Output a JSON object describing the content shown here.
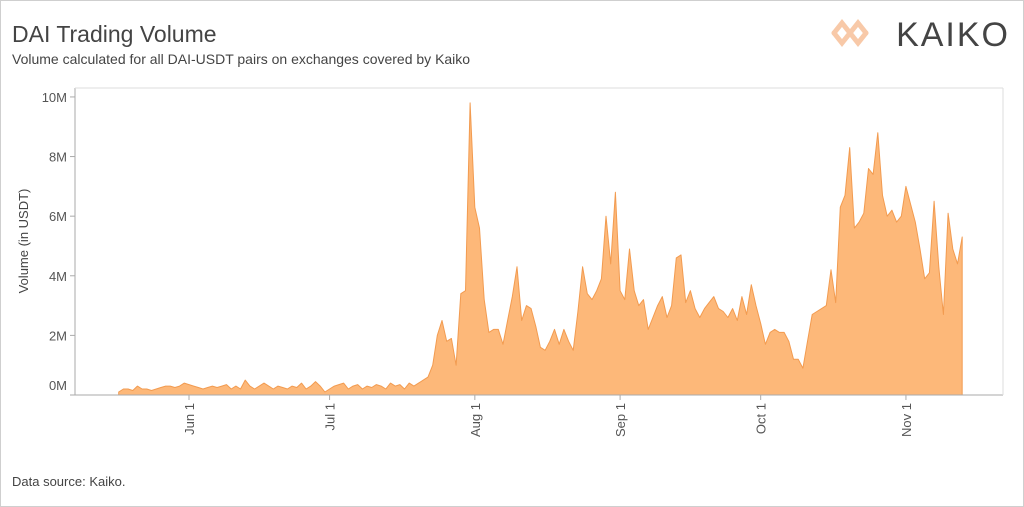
{
  "chart_data": {
    "type": "area",
    "title": "DAI Trading Volume",
    "subtitle": "Volume calculated for all DAI-USDT pairs on exchanges covered by Kaiko",
    "logo": "KAIKO",
    "ylabel": "Volume (in USDT)",
    "source": "Data source: Kaiko.",
    "color": "#fdb879",
    "line_color": "#f29b50",
    "x": [
      "May 17",
      "May 18",
      "May 19",
      "May 20",
      "May 21",
      "May 22",
      "May 23",
      "May 24",
      "May 25",
      "May 26",
      "May 27",
      "May 28",
      "May 29",
      "May 30",
      "May 31",
      "Jun 1",
      "Jun 2",
      "Jun 3",
      "Jun 4",
      "Jun 5",
      "Jun 6",
      "Jun 7",
      "Jun 8",
      "Jun 9",
      "Jun 10",
      "Jun 11",
      "Jun 12",
      "Jun 13",
      "Jun 14",
      "Jun 15",
      "Jun 16",
      "Jun 17",
      "Jun 18",
      "Jun 19",
      "Jun 20",
      "Jun 21",
      "Jun 22",
      "Jun 23",
      "Jun 24",
      "Jun 25",
      "Jun 26",
      "Jun 27",
      "Jun 28",
      "Jun 29",
      "Jun 30",
      "Jul 1",
      "Jul 2",
      "Jul 3",
      "Jul 4",
      "Jul 5",
      "Jul 6",
      "Jul 7",
      "Jul 8",
      "Jul 9",
      "Jul 10",
      "Jul 11",
      "Jul 12",
      "Jul 13",
      "Jul 14",
      "Jul 15",
      "Jul 16",
      "Jul 17",
      "Jul 18",
      "Jul 19",
      "Jul 20",
      "Jul 21",
      "Jul 22",
      "Jul 23",
      "Jul 24",
      "Jul 25",
      "Jul 26",
      "Jul 27",
      "Jul 28",
      "Jul 29",
      "Jul 30",
      "Jul 31",
      "Aug 1",
      "Aug 2",
      "Aug 3",
      "Aug 4",
      "Aug 5",
      "Aug 6",
      "Aug 7",
      "Aug 8",
      "Aug 9",
      "Aug 10",
      "Aug 11",
      "Aug 12",
      "Aug 13",
      "Aug 14",
      "Aug 15",
      "Aug 16",
      "Aug 17",
      "Aug 18",
      "Aug 19",
      "Aug 20",
      "Aug 21",
      "Aug 22",
      "Aug 23",
      "Aug 24",
      "Aug 25",
      "Aug 26",
      "Aug 27",
      "Aug 28",
      "Aug 29",
      "Aug 30",
      "Aug 31",
      "Sep 1",
      "Sep 2",
      "Sep 3",
      "Sep 4",
      "Sep 5",
      "Sep 6",
      "Sep 7",
      "Sep 8",
      "Sep 9",
      "Sep 10",
      "Sep 11",
      "Sep 12",
      "Sep 13",
      "Sep 14",
      "Sep 15",
      "Sep 16",
      "Sep 17",
      "Sep 18",
      "Sep 19",
      "Sep 20",
      "Sep 21",
      "Sep 22",
      "Sep 23",
      "Sep 24",
      "Sep 25",
      "Sep 26",
      "Sep 27",
      "Sep 28",
      "Sep 29",
      "Sep 30",
      "Oct 1",
      "Oct 2",
      "Oct 3",
      "Oct 4",
      "Oct 5",
      "Oct 6",
      "Oct 7",
      "Oct 8",
      "Oct 9",
      "Oct 10",
      "Oct 11",
      "Oct 12",
      "Oct 13",
      "Oct 14",
      "Oct 15",
      "Oct 16",
      "Oct 17",
      "Oct 18",
      "Oct 19",
      "Oct 20",
      "Oct 21",
      "Oct 22",
      "Oct 23",
      "Oct 24",
      "Oct 25",
      "Oct 26",
      "Oct 27",
      "Oct 28",
      "Oct 29",
      "Oct 30",
      "Oct 31",
      "Nov 1",
      "Nov 2",
      "Nov 3",
      "Nov 4",
      "Nov 5",
      "Nov 6",
      "Nov 7",
      "Nov 8",
      "Nov 9",
      "Nov 10",
      "Nov 11",
      "Nov 12",
      "Nov 13"
    ],
    "values": [
      100000,
      200000,
      200000,
      150000,
      300000,
      200000,
      200000,
      150000,
      200000,
      250000,
      300000,
      300000,
      250000,
      300000,
      400000,
      350000,
      300000,
      250000,
      200000,
      250000,
      300000,
      250000,
      300000,
      350000,
      200000,
      300000,
      200000,
      500000,
      300000,
      200000,
      300000,
      400000,
      300000,
      200000,
      300000,
      250000,
      200000,
      300000,
      250000,
      400000,
      200000,
      300000,
      450000,
      300000,
      100000,
      200000,
      300000,
      350000,
      400000,
      200000,
      300000,
      350000,
      200000,
      300000,
      250000,
      350000,
      300000,
      200000,
      400000,
      300000,
      350000,
      200000,
      400000,
      300000,
      400000,
      500000,
      600000,
      1000000,
      2000000,
      2500000,
      1800000,
      1900000,
      1000000,
      3400000,
      3500000,
      9800000,
      6300000,
      5600000,
      3200000,
      2100000,
      2200000,
      2200000,
      1700000,
      2500000,
      3300000,
      4300000,
      2500000,
      3000000,
      2900000,
      2300000,
      1600000,
      1500000,
      1800000,
      2200000,
      1700000,
      2200000,
      1800000,
      1500000,
      2800000,
      4300000,
      3400000,
      3200000,
      3500000,
      3900000,
      6000000,
      4400000,
      6800000,
      3500000,
      3200000,
      4900000,
      3500000,
      3000000,
      3200000,
      2200000,
      2600000,
      3000000,
      3300000,
      2600000,
      3000000,
      4600000,
      4700000,
      3100000,
      3500000,
      2900000,
      2600000,
      2900000,
      3100000,
      3300000,
      2900000,
      2800000,
      2600000,
      2900000,
      2500000,
      3300000,
      2700000,
      3700000,
      3000000,
      2400000,
      1700000,
      2100000,
      2200000,
      2100000,
      2100000,
      1800000,
      1200000,
      1200000,
      900000,
      1800000,
      2700000,
      2800000,
      2900000,
      3000000,
      4200000,
      3100000,
      6300000,
      6700000,
      8300000,
      5600000,
      5800000,
      6100000,
      7600000,
      7400000,
      8800000,
      6700000,
      6000000,
      6200000,
      5800000,
      6000000,
      7000000,
      6400000,
      5800000,
      4900000,
      3900000,
      4100000,
      6500000,
      4300000,
      2700000,
      6100000,
      4900000,
      4400000,
      5300000
    ],
    "ylim": [
      0,
      10300000
    ],
    "yticks": [
      {
        "value": 0,
        "label": "0M"
      },
      {
        "value": 2000000,
        "label": "2M"
      },
      {
        "value": 4000000,
        "label": "4M"
      },
      {
        "value": 6000000,
        "label": "6M"
      },
      {
        "value": 8000000,
        "label": "8M"
      },
      {
        "value": 10000000,
        "label": "10M"
      }
    ],
    "xticks": [
      "Jun 1",
      "Jul 1",
      "Aug 1",
      "Sep 1",
      "Oct 1",
      "Nov 1"
    ]
  }
}
